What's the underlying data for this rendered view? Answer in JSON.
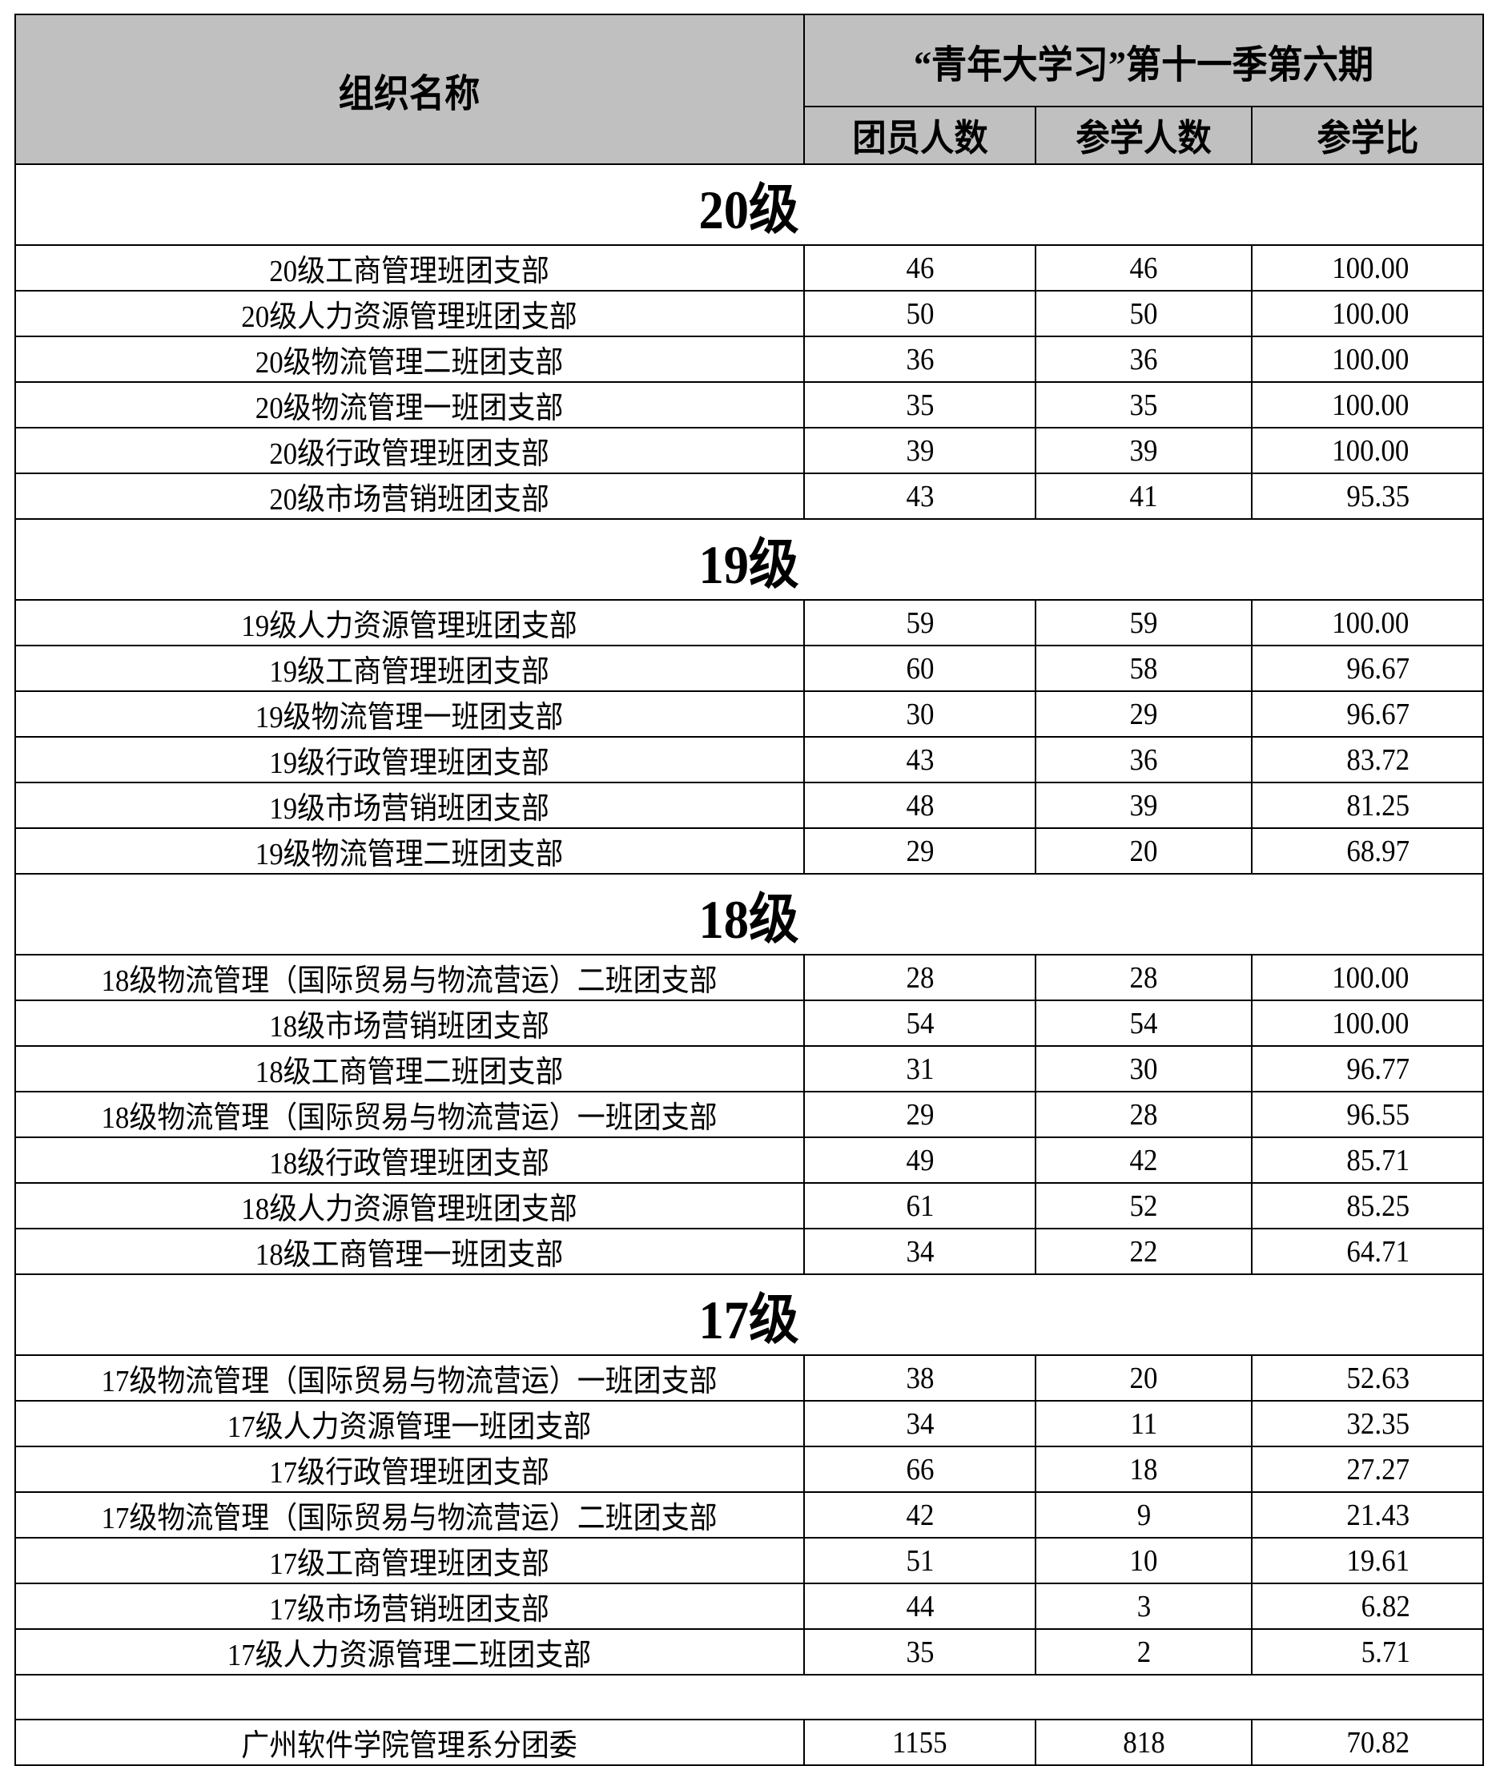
{
  "header": {
    "org_col": "组织名称",
    "period_title": "“青年大学习”第十一季第六期",
    "columns": [
      "团员人数",
      "参学人数",
      "参学比"
    ]
  },
  "sections": [
    {
      "label": "20级",
      "rows": [
        {
          "name": "20级工商管理班团支部",
          "members": "46",
          "participants": "46",
          "ratio": "100.00"
        },
        {
          "name": "20级人力资源管理班团支部",
          "members": "50",
          "participants": "50",
          "ratio": "100.00"
        },
        {
          "name": "20级物流管理二班团支部",
          "members": "36",
          "participants": "36",
          "ratio": "100.00"
        },
        {
          "name": "20级物流管理一班团支部",
          "members": "35",
          "participants": "35",
          "ratio": "100.00"
        },
        {
          "name": "20级行政管理班团支部",
          "members": "39",
          "participants": "39",
          "ratio": "100.00"
        },
        {
          "name": "20级市场营销班团支部",
          "members": "43",
          "participants": "41",
          "ratio": "95.35"
        }
      ]
    },
    {
      "label": "19级",
      "rows": [
        {
          "name": "19级人力资源管理班团支部",
          "members": "59",
          "participants": "59",
          "ratio": "100.00"
        },
        {
          "name": "19级工商管理班团支部",
          "members": "60",
          "participants": "58",
          "ratio": "96.67"
        },
        {
          "name": "19级物流管理一班团支部",
          "members": "30",
          "participants": "29",
          "ratio": "96.67"
        },
        {
          "name": "19级行政管理班团支部",
          "members": "43",
          "participants": "36",
          "ratio": "83.72"
        },
        {
          "name": "19级市场营销班团支部",
          "members": "48",
          "participants": "39",
          "ratio": "81.25"
        },
        {
          "name": "19级物流管理二班团支部",
          "members": "29",
          "participants": "20",
          "ratio": "68.97"
        }
      ]
    },
    {
      "label": "18级",
      "rows": [
        {
          "name": "18级物流管理（国际贸易与物流营运）二班团支部",
          "members": "28",
          "participants": "28",
          "ratio": "100.00"
        },
        {
          "name": "18级市场营销班团支部",
          "members": "54",
          "participants": "54",
          "ratio": "100.00"
        },
        {
          "name": "18级工商管理二班团支部",
          "members": "31",
          "participants": "30",
          "ratio": "96.77"
        },
        {
          "name": "18级物流管理（国际贸易与物流营运）一班团支部",
          "members": "29",
          "participants": "28",
          "ratio": "96.55"
        },
        {
          "name": "18级行政管理班团支部",
          "members": "49",
          "participants": "42",
          "ratio": "85.71"
        },
        {
          "name": "18级人力资源管理班团支部",
          "members": "61",
          "participants": "52",
          "ratio": "85.25"
        },
        {
          "name": "18级工商管理一班团支部",
          "members": "34",
          "participants": "22",
          "ratio": "64.71"
        }
      ]
    },
    {
      "label": "17级",
      "rows": [
        {
          "name": "17级物流管理（国际贸易与物流营运）一班团支部",
          "members": "38",
          "participants": "20",
          "ratio": "52.63"
        },
        {
          "name": "17级人力资源管理一班团支部",
          "members": "34",
          "participants": "11",
          "ratio": "32.35"
        },
        {
          "name": "17级行政管理班团支部",
          "members": "66",
          "participants": "18",
          "ratio": "27.27"
        },
        {
          "name": "17级物流管理（国际贸易与物流营运）二班团支部",
          "members": "42",
          "participants": "9",
          "ratio": "21.43"
        },
        {
          "name": "17级工商管理班团支部",
          "members": "51",
          "participants": "10",
          "ratio": "19.61"
        },
        {
          "name": "17级市场营销班团支部",
          "members": "44",
          "participants": "3",
          "ratio": "6.82"
        },
        {
          "name": "17级人力资源管理二班团支部",
          "members": "35",
          "participants": "2",
          "ratio": "5.71"
        }
      ]
    }
  ],
  "total": {
    "name": "广州软件学院管理系分团委",
    "members": "1155",
    "participants": "818",
    "ratio": "70.82"
  }
}
